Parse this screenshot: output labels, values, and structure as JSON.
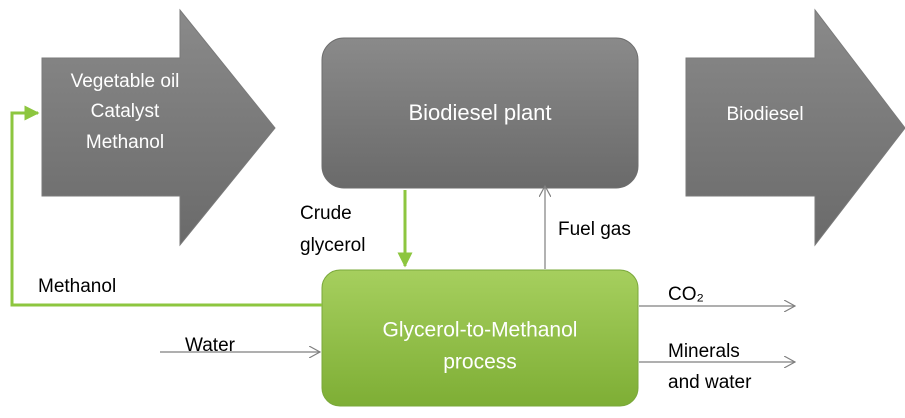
{
  "nodes": [
    {
      "id": "inputs",
      "lines": [
        "Vegetable oil",
        "Catalyst",
        "Methanol"
      ]
    },
    {
      "id": "plant",
      "lines": [
        "Biodiesel plant"
      ]
    },
    {
      "id": "output",
      "lines": [
        "Biodiesel"
      ]
    },
    {
      "id": "gtm",
      "lines": [
        "Glycerol-to-Methanol",
        "process"
      ]
    }
  ],
  "edges": [
    {
      "lines": [
        "Crude",
        "glycerol"
      ]
    },
    {
      "lines": [
        "Fuel gas"
      ]
    },
    {
      "lines": [
        "Methanol"
      ]
    },
    {
      "lines": [
        "Water"
      ]
    },
    {
      "lines": [
        "CO₂"
      ]
    },
    {
      "lines": [
        "Minerals",
        "and water"
      ]
    }
  ]
}
